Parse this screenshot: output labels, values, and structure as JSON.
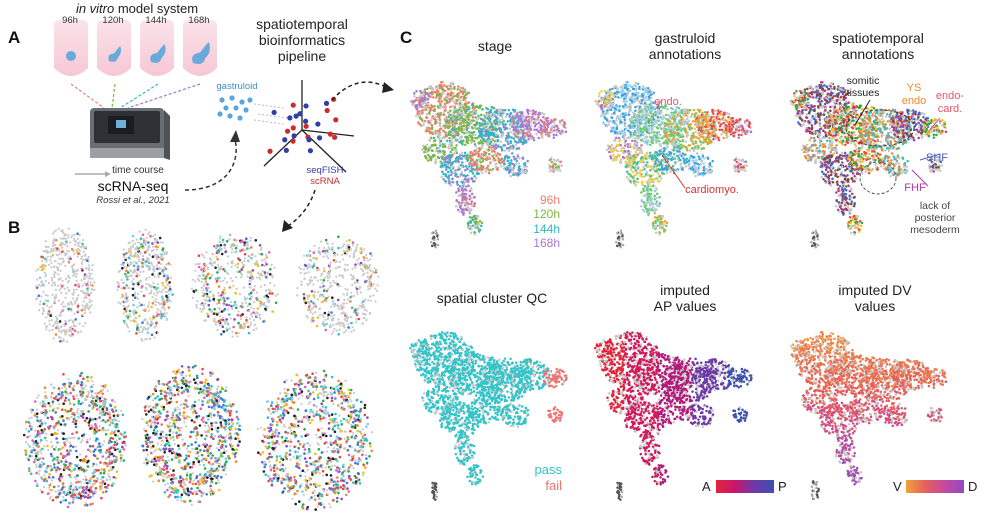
{
  "panels": {
    "A": "A",
    "B": "B",
    "C": "C"
  },
  "panelA": {
    "model_title_italic": "in vitro",
    "model_title_rest": " model system",
    "timepoints": [
      "96h",
      "120h",
      "144h",
      "168h"
    ],
    "timepoint_colors": [
      "#e8836f",
      "#7ab648",
      "#33b8c2",
      "#a576d3"
    ],
    "time_course": "time course",
    "scrna": "scRNA-seq",
    "citation": "Rossi et al., 2021",
    "gastruloid": "gastruloid",
    "pipeline": [
      "spatiotemporal",
      "bioinformatics",
      "pipeline"
    ],
    "seqfish": "seqFISH",
    "scrna_small": "scRNA"
  },
  "panelC": {
    "titles": {
      "stage": "stage",
      "gastruloid_annotations": [
        "gastruloid",
        "annotations"
      ],
      "spatiotemporal_annotations": [
        "spatiotemporal",
        "annotations"
      ],
      "spatial_qc": "spatial cluster QC",
      "imputed_ap": [
        "imputed",
        "AP values"
      ],
      "imputed_dv": [
        "imputed DV",
        "values"
      ]
    },
    "stage_legend": [
      "96h",
      "120h",
      "144h",
      "168h"
    ],
    "stage_colors": [
      "#f07d6a",
      "#79b843",
      "#2fb6c4",
      "#a878d8"
    ],
    "gastruloid_labels": {
      "endo": "endo.",
      "cardiomyo": "cardiomyo."
    },
    "spatiotemporal_labels": {
      "somitic": [
        "somitic",
        "tissues"
      ],
      "ys_endo": [
        "YS",
        "endo"
      ],
      "endo_card": [
        "endo-",
        "card."
      ],
      "shf": "SHF",
      "fhf": "FHF",
      "lack": [
        "lack of",
        "posterior",
        "mesoderm"
      ]
    },
    "qc_legend": {
      "pass": "pass",
      "fail": "fail"
    },
    "qc_colors": {
      "pass": "#33c4c8",
      "fail": "#ee7373"
    },
    "ap_scale": {
      "left": "A",
      "right": "P"
    },
    "dv_scale": {
      "left": "V",
      "right": "D"
    },
    "label_colors": {
      "endo": "#e8536a",
      "cardiomyo": "#e03030",
      "ys": "#f08a2a",
      "shf": "#4a5fbf",
      "fhf": "#b23aa8",
      "gray": "#555555"
    }
  }
}
